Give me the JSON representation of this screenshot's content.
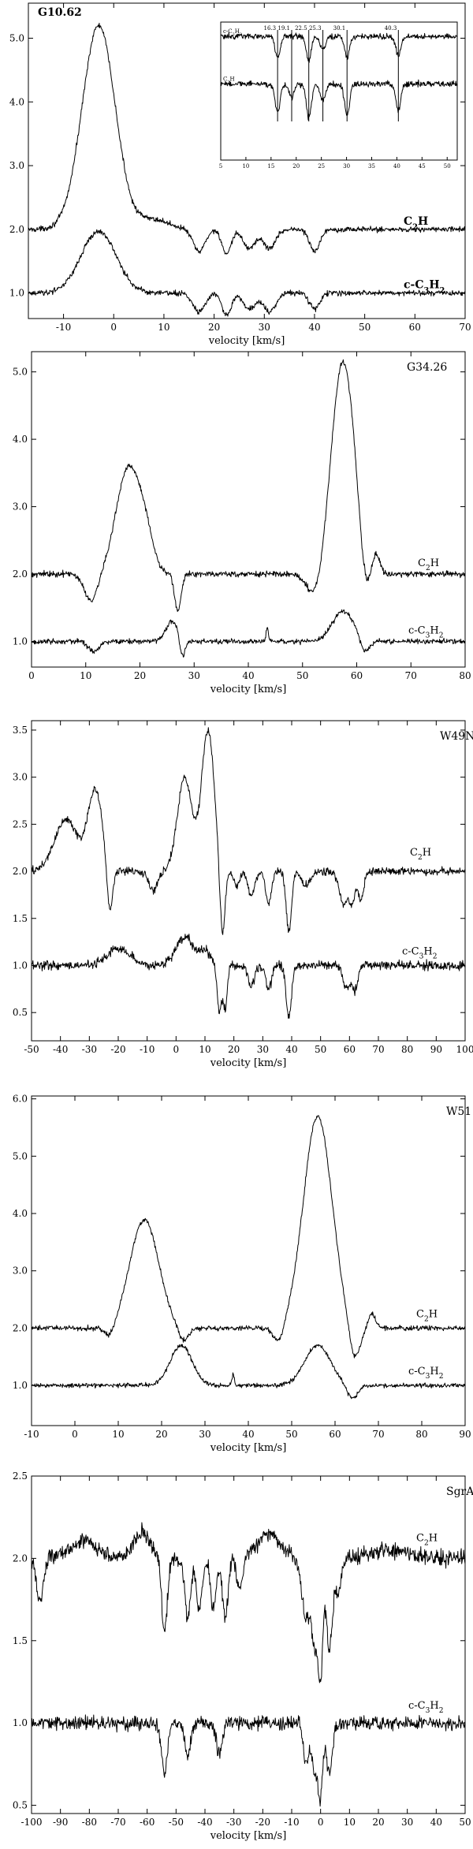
{
  "chart_data": [
    {
      "type": "line",
      "title": "G10.62",
      "xlabel": "velocity [km/s]",
      "ylabel": "",
      "xlim": [
        -17,
        70
      ],
      "ylim": [
        0.6,
        5.55
      ],
      "xticks": [
        -10,
        0,
        10,
        20,
        30,
        40,
        50,
        60,
        70
      ],
      "yticks": [
        1.0,
        2.0,
        3.0,
        4.0,
        5.0
      ],
      "ytick_format": 1,
      "grid": false,
      "series": [
        {
          "name": "C2H",
          "baseline": 2.0,
          "noise": 0.035,
          "features": [
            [
              -3,
              3.2,
              3.3
            ],
            [
              8,
              0.15,
              3
            ],
            [
              17,
              -0.35,
              1.2
            ],
            [
              22.5,
              -0.4,
              0.9
            ],
            [
              27,
              -0.3,
              1.2
            ],
            [
              31,
              -0.3,
              1.2
            ],
            [
              40,
              -0.35,
              1
            ]
          ]
        },
        {
          "name": "c-C3H2",
          "baseline": 1.0,
          "noise": 0.035,
          "features": [
            [
              -3,
              0.97,
              3.5
            ],
            [
              17,
              -0.3,
              1.2
            ],
            [
              22.5,
              -0.35,
              0.9
            ],
            [
              27,
              -0.25,
              1.2
            ],
            [
              31,
              -0.3,
              1.2
            ],
            [
              40,
              -0.25,
              1
            ]
          ]
        }
      ],
      "inset": {
        "xlim": [
          5,
          52
        ],
        "xticks": [
          5,
          10,
          15,
          20,
          25,
          30,
          35,
          40,
          45,
          50
        ],
        "markers": [
          "16.3",
          "19.1",
          "22.5",
          "25.3",
          "30.1",
          "40.3"
        ],
        "marker_values": [
          16.3,
          19.1,
          22.5,
          25.3,
          30.1,
          40.3
        ],
        "labels": [
          "c-C3H2",
          "C2H"
        ],
        "series": [
          {
            "name": "c-C3H2",
            "baseline": 1.0,
            "noise": 0.05,
            "features": [
              [
                16.3,
                -0.45,
                0.5
              ],
              [
                22.5,
                -0.5,
                0.5
              ],
              [
                25.3,
                -0.3,
                0.5
              ],
              [
                30.1,
                -0.45,
                0.5
              ],
              [
                40.3,
                -0.4,
                0.5
              ]
            ]
          },
          {
            "name": "C2H",
            "baseline": 0.0,
            "noise": 0.05,
            "features": [
              [
                16.3,
                -0.6,
                0.5
              ],
              [
                19.1,
                -0.3,
                0.5
              ],
              [
                22.5,
                -0.7,
                0.5
              ],
              [
                25.3,
                -0.35,
                0.5
              ],
              [
                30.1,
                -0.65,
                0.5
              ],
              [
                40.3,
                -0.55,
                0.5
              ]
            ]
          }
        ]
      }
    },
    {
      "type": "line",
      "title": "G34.26",
      "xlabel": "velocity [km/s]",
      "ylabel": "",
      "xlim": [
        0,
        80
      ],
      "ylim": [
        0.62,
        5.3
      ],
      "xticks": [
        0,
        10,
        20,
        30,
        40,
        50,
        60,
        70,
        80
      ],
      "yticks": [
        1.0,
        2.0,
        3.0,
        4.0,
        5.0
      ],
      "ytick_format": 1,
      "grid": false,
      "series": [
        {
          "name": "C2H",
          "baseline": 2.0,
          "noise": 0.035,
          "features": [
            [
              11,
              -0.4,
              1.2
            ],
            [
              17.8,
              1.55,
              2.2
            ],
            [
              21,
              0.45,
              1.5
            ],
            [
              27,
              -0.55,
              0.6
            ],
            [
              52.5,
              -0.4,
              1.5
            ],
            [
              57.5,
              3.15,
              2.2
            ],
            [
              61.5,
              -0.55,
              1
            ],
            [
              63.5,
              0.3,
              0.7
            ]
          ]
        },
        {
          "name": "c-C3H2",
          "baseline": 1.0,
          "noise": 0.03,
          "features": [
            [
              11.5,
              -0.15,
              1
            ],
            [
              26,
              0.3,
              1.2
            ],
            [
              27.8,
              -0.3,
              0.5
            ],
            [
              43.5,
              0.2,
              0.2
            ],
            [
              57.5,
              0.45,
              2
            ],
            [
              61.5,
              -0.2,
              0.8
            ]
          ]
        }
      ]
    },
    {
      "type": "line",
      "title": "W49N",
      "xlabel": "velocity [km/s]",
      "ylabel": "",
      "xlim": [
        -50,
        100
      ],
      "ylim": [
        0.2,
        3.6
      ],
      "xticks": [
        -50,
        -40,
        -30,
        -20,
        -10,
        0,
        10,
        20,
        30,
        40,
        50,
        60,
        70,
        80,
        90,
        100
      ],
      "yticks": [
        0.5,
        1.0,
        1.5,
        2.0,
        2.5,
        3.0,
        3.5
      ],
      "ytick_format": 1,
      "grid": false,
      "series": [
        {
          "name": "C2H",
          "baseline": 2.0,
          "noise": 0.035,
          "features": [
            [
              -38,
              0.55,
              4
            ],
            [
              -28,
              0.85,
              2.5
            ],
            [
              -23,
              -0.5,
              1
            ],
            [
              -8,
              -0.2,
              1.5
            ],
            [
              3,
              1.0,
              2.5
            ],
            [
              11,
              1.5,
              2.2
            ],
            [
              16,
              -0.75,
              0.9
            ],
            [
              21,
              -0.15,
              1
            ],
            [
              26,
              -0.25,
              1.2
            ],
            [
              32,
              -0.35,
              1
            ],
            [
              39,
              -0.65,
              0.9
            ],
            [
              45,
              -0.15,
              1.5
            ],
            [
              58,
              -0.35,
              1.5
            ],
            [
              61,
              -0.3,
              1
            ],
            [
              64,
              -0.3,
              1
            ]
          ]
        },
        {
          "name": "c-C3H2",
          "baseline": 1.0,
          "noise": 0.04,
          "features": [
            [
              -20,
              0.18,
              4
            ],
            [
              3,
              0.3,
              3
            ],
            [
              10,
              0.15,
              2
            ],
            [
              15,
              -0.5,
              0.8
            ],
            [
              17,
              -0.45,
              0.7
            ],
            [
              26,
              -0.2,
              1.2
            ],
            [
              32,
              -0.25,
              1
            ],
            [
              39,
              -0.55,
              0.9
            ],
            [
              59,
              -0.25,
              1.2
            ],
            [
              62,
              -0.25,
              1
            ]
          ]
        }
      ]
    },
    {
      "type": "line",
      "title": "W51",
      "xlabel": "velocity [km/s]",
      "ylabel": "",
      "xlim": [
        -10,
        90
      ],
      "ylim": [
        0.3,
        6.05
      ],
      "xticks": [
        -10,
        0,
        10,
        20,
        30,
        40,
        50,
        60,
        70,
        80,
        90
      ],
      "yticks": [
        1.0,
        2.0,
        3.0,
        4.0,
        5.0,
        6.0
      ],
      "ytick_format": 1,
      "grid": false,
      "series": [
        {
          "name": "C2H",
          "baseline": 2.0,
          "noise": 0.035,
          "features": [
            [
              8,
              -0.2,
              1.2
            ],
            [
              16,
              1.9,
              3.3
            ],
            [
              25,
              -0.25,
              1.2
            ],
            [
              47,
              -0.3,
              1.2
            ],
            [
              56,
              3.7,
              3.3
            ],
            [
              64.5,
              -0.6,
              1.3
            ],
            [
              68.5,
              0.25,
              0.8
            ]
          ]
        },
        {
          "name": "c-C3H2",
          "baseline": 1.0,
          "noise": 0.03,
          "features": [
            [
              24.5,
              0.7,
              2.5
            ],
            [
              36.5,
              0.2,
              0.3
            ],
            [
              56,
              0.7,
              3
            ],
            [
              64,
              -0.25,
              1.2
            ]
          ]
        }
      ]
    },
    {
      "type": "line",
      "title": "SgrA",
      "xlabel": "velocity [km/s]",
      "ylabel": "",
      "xlim": [
        -100,
        50
      ],
      "ylim": [
        0.45,
        2.5
      ],
      "xticks": [
        -100,
        -90,
        -80,
        -70,
        -60,
        -50,
        -40,
        -30,
        -20,
        -10,
        0,
        10,
        20,
        30,
        40,
        50
      ],
      "yticks": [
        0.5,
        1.0,
        1.5,
        2.0,
        2.5
      ],
      "ytick_format": 1,
      "grid": false,
      "series": [
        {
          "name": "C2H",
          "baseline": 2.0,
          "noise": 0.04,
          "features": [
            [
              -97,
              -0.25,
              1.2
            ],
            [
              -82,
              0.1,
              5
            ],
            [
              -62,
              0.15,
              3
            ],
            [
              -54,
              -0.45,
              1
            ],
            [
              -46,
              -0.35,
              1
            ],
            [
              -42,
              -0.3,
              1
            ],
            [
              -37,
              -0.3,
              1
            ],
            [
              -33,
              -0.35,
              1
            ],
            [
              -28,
              -0.2,
              1
            ],
            [
              -18,
              0.15,
              4
            ],
            [
              -5,
              -0.35,
              1.5
            ],
            [
              -2,
              -0.5,
              1
            ],
            [
              0,
              -0.7,
              0.8
            ],
            [
              3,
              -0.55,
              1
            ],
            [
              6,
              -0.2,
              1.2
            ],
            [
              25,
              0.05,
              6
            ]
          ]
        },
        {
          "name": "c-C3H2",
          "baseline": 1.0,
          "noise": 0.035,
          "features": [
            [
              -54,
              -0.3,
              1
            ],
            [
              -46,
              -0.2,
              1
            ],
            [
              -35,
              -0.2,
              1
            ],
            [
              -5,
              -0.25,
              1
            ],
            [
              -2,
              -0.3,
              1
            ],
            [
              0,
              -0.4,
              0.8
            ],
            [
              3,
              -0.3,
              1
            ]
          ]
        }
      ]
    }
  ]
}
